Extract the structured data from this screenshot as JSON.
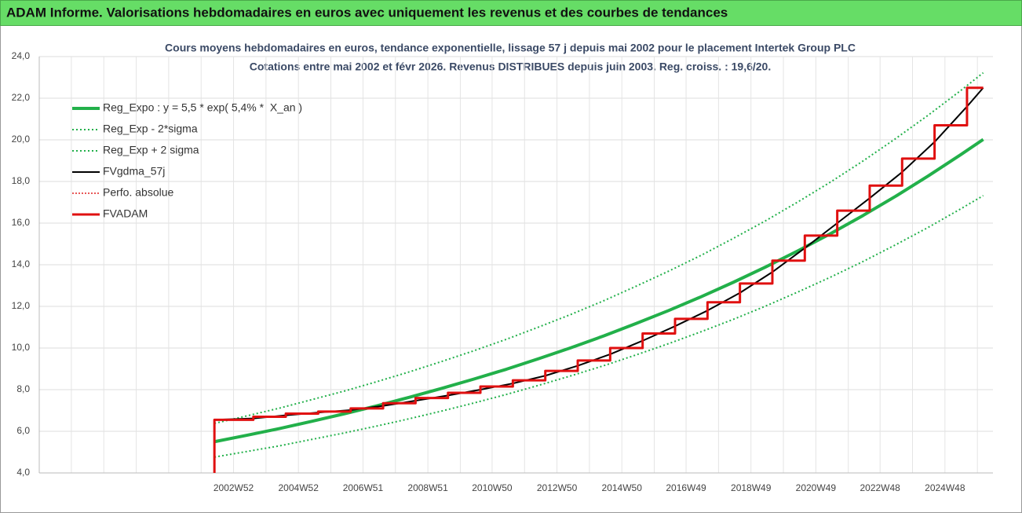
{
  "header": {
    "title": "ADAM Informe. Valorisations hebdomadaires en euros avec uniquement les revenus et des courbes de tendances"
  },
  "chart_data": {
    "type": "line",
    "title": "Cours moyens hebdomadaires en euros, tendance exponentielle, lissage 57 j depuis mai 2002 pour le placement Intertek Group PLC",
    "subtitle": "Cotations entre mai 2002 et févr 2026. Revenus DISTRIBUES depuis juin 2003. Reg. croiss. : 19,6/20.",
    "legend": "top-left",
    "grid": true,
    "xlim": [
      1997.0,
      2026.4
    ],
    "xticks": [
      {
        "value": 2002.99,
        "label": "2002W52"
      },
      {
        "value": 2004.99,
        "label": "2004W52"
      },
      {
        "value": 2006.98,
        "label": "2006W51"
      },
      {
        "value": 2008.98,
        "label": "2008W51"
      },
      {
        "value": 2010.96,
        "label": "2010W50"
      },
      {
        "value": 2012.96,
        "label": "2012W50"
      },
      {
        "value": 2014.96,
        "label": "2014W50"
      },
      {
        "value": 2016.94,
        "label": "2016W49"
      },
      {
        "value": 2018.94,
        "label": "2018W49"
      },
      {
        "value": 2020.94,
        "label": "2020W49"
      },
      {
        "value": 2022.92,
        "label": "2022W48"
      },
      {
        "value": 2024.92,
        "label": "2024W48"
      }
    ],
    "ylim": [
      4,
      24
    ],
    "yticks": [
      {
        "value": 4,
        "label": "4,0"
      },
      {
        "value": 6,
        "label": "6,0"
      },
      {
        "value": 8,
        "label": "8,0"
      },
      {
        "value": 10,
        "label": "10,0"
      },
      {
        "value": 12,
        "label": "12,0"
      },
      {
        "value": 14,
        "label": "14,0"
      },
      {
        "value": 16,
        "label": "16,0"
      },
      {
        "value": 18,
        "label": "18,0"
      },
      {
        "value": 20,
        "label": "20,0"
      },
      {
        "value": 22,
        "label": "22,0"
      },
      {
        "value": 24,
        "label": "24,0"
      }
    ],
    "series": [
      {
        "name": "Reg_Expo : y = 5,5 * exp( 5,4% *  X_an )",
        "color": "#22b04a",
        "width": 4,
        "dash": "none",
        "x": [
          2002.4,
          2003.4,
          2004.4,
          2005.4,
          2006.4,
          2007.4,
          2008.4,
          2009.4,
          2010.4,
          2011.4,
          2012.4,
          2013.4,
          2014.4,
          2015.4,
          2016.4,
          2017.4,
          2018.4,
          2019.4,
          2020.4,
          2021.4,
          2022.4,
          2023.4,
          2024.4,
          2025.4,
          2026.1
        ],
        "values": [
          5.5,
          5.81,
          6.13,
          6.48,
          6.84,
          7.22,
          7.63,
          8.06,
          8.51,
          8.98,
          9.49,
          10.02,
          10.58,
          11.18,
          11.8,
          12.46,
          13.16,
          13.9,
          14.68,
          15.5,
          16.37,
          17.29,
          18.26,
          19.28,
          20.02
        ]
      },
      {
        "name": "Reg_Exp - 2*sigma",
        "color": "#22b04a",
        "width": 2,
        "dash": "2 3",
        "x": [
          2002.4,
          2003.4,
          2004.4,
          2005.4,
          2006.4,
          2007.4,
          2008.4,
          2009.4,
          2010.4,
          2011.4,
          2012.4,
          2013.4,
          2014.4,
          2015.4,
          2016.4,
          2017.4,
          2018.4,
          2019.4,
          2020.4,
          2021.4,
          2022.4,
          2023.4,
          2024.4,
          2025.4,
          2026.1
        ],
        "values": [
          4.76,
          5.03,
          5.3,
          5.61,
          5.92,
          6.25,
          6.6,
          6.97,
          7.36,
          7.77,
          8.21,
          8.67,
          9.15,
          9.67,
          10.21,
          10.78,
          11.38,
          12.02,
          12.7,
          13.41,
          14.16,
          14.96,
          15.79,
          16.68,
          17.32
        ]
      },
      {
        "name": "Reg_Exp + 2 sigma",
        "color": "#22b04a",
        "width": 2,
        "dash": "2 3",
        "x": [
          2002.4,
          2003.4,
          2004.4,
          2005.4,
          2006.4,
          2007.4,
          2008.4,
          2009.4,
          2010.4,
          2011.4,
          2012.4,
          2013.4,
          2014.4,
          2015.4,
          2016.4,
          2017.4,
          2018.4,
          2019.4,
          2020.4,
          2021.4,
          2022.4,
          2023.4,
          2024.4,
          2025.4,
          2026.1
        ],
        "values": [
          6.38,
          6.74,
          7.11,
          7.52,
          7.93,
          8.38,
          8.85,
          9.35,
          9.87,
          10.42,
          11.01,
          11.62,
          12.27,
          12.97,
          13.69,
          14.45,
          15.27,
          16.12,
          17.03,
          17.98,
          18.99,
          20.06,
          21.18,
          22.36,
          23.22
        ]
      },
      {
        "name": "FVgdma_57j",
        "color": "#000000",
        "width": 2,
        "dash": "none",
        "x": [
          2002.4,
          2003.6,
          2004.6,
          2005.6,
          2006.6,
          2007.6,
          2008.6,
          2009.6,
          2010.6,
          2011.6,
          2012.6,
          2013.6,
          2014.6,
          2015.6,
          2016.6,
          2017.6,
          2018.6,
          2019.6,
          2020.6,
          2021.6,
          2022.6,
          2023.6,
          2024.6,
          2025.6,
          2026.1
        ],
        "values": [
          6.55,
          6.62,
          6.77,
          6.9,
          7.02,
          7.22,
          7.47,
          7.72,
          8.0,
          8.3,
          8.67,
          9.15,
          9.7,
          10.35,
          11.05,
          11.8,
          12.65,
          13.65,
          14.8,
          16.0,
          17.2,
          18.45,
          19.9,
          21.6,
          22.5
        ]
      },
      {
        "name": "Perfo. absolue",
        "color": "#e02020",
        "width": 1.5,
        "dash": "2 2",
        "x": [
          2002.4,
          2002.4,
          2003.6,
          2003.6,
          2004.6,
          2004.6,
          2005.6,
          2005.6,
          2006.6,
          2006.6,
          2007.6,
          2007.6,
          2008.6,
          2008.6,
          2009.6,
          2009.6,
          2010.6,
          2010.6,
          2011.6,
          2011.6,
          2012.6,
          2012.6,
          2013.6,
          2013.6,
          2014.6,
          2014.6,
          2015.6,
          2015.6,
          2016.6,
          2016.6,
          2017.6,
          2017.6,
          2018.6,
          2018.6,
          2019.6,
          2019.6,
          2020.6,
          2020.6,
          2021.6,
          2021.6,
          2022.6,
          2022.6,
          2023.6,
          2023.6,
          2024.6,
          2024.6,
          2025.6,
          2025.6,
          2026.1
        ],
        "values": [
          4.0,
          6.55,
          6.55,
          6.7,
          6.7,
          6.85,
          6.85,
          6.95,
          6.95,
          7.1,
          7.1,
          7.35,
          7.35,
          7.6,
          7.6,
          7.85,
          7.85,
          8.15,
          8.15,
          8.45,
          8.45,
          8.9,
          8.9,
          9.4,
          9.4,
          10.0,
          10.0,
          10.7,
          10.7,
          11.4,
          11.4,
          12.2,
          12.2,
          13.1,
          13.1,
          14.2,
          14.2,
          15.4,
          15.4,
          16.6,
          16.6,
          17.8,
          17.8,
          19.1,
          19.1,
          20.7,
          20.7,
          22.5,
          22.5
        ]
      },
      {
        "name": "FVADAM",
        "color": "#e01010",
        "width": 3,
        "dash": "none",
        "x": [
          2002.4,
          2002.4,
          2003.6,
          2003.6,
          2004.6,
          2004.6,
          2005.6,
          2005.6,
          2006.6,
          2006.6,
          2007.6,
          2007.6,
          2008.6,
          2008.6,
          2009.6,
          2009.6,
          2010.6,
          2010.6,
          2011.6,
          2011.6,
          2012.6,
          2012.6,
          2013.6,
          2013.6,
          2014.6,
          2014.6,
          2015.6,
          2015.6,
          2016.6,
          2016.6,
          2017.6,
          2017.6,
          2018.6,
          2018.6,
          2019.6,
          2019.6,
          2020.6,
          2020.6,
          2021.6,
          2021.6,
          2022.6,
          2022.6,
          2023.6,
          2023.6,
          2024.6,
          2024.6,
          2025.6,
          2025.6,
          2026.1
        ],
        "values": [
          4.0,
          6.55,
          6.55,
          6.7,
          6.7,
          6.85,
          6.85,
          6.95,
          6.95,
          7.1,
          7.1,
          7.35,
          7.35,
          7.6,
          7.6,
          7.85,
          7.85,
          8.15,
          8.15,
          8.45,
          8.45,
          8.9,
          8.9,
          9.4,
          9.4,
          10.0,
          10.0,
          10.7,
          10.7,
          11.4,
          11.4,
          12.2,
          12.2,
          13.1,
          13.1,
          14.2,
          14.2,
          15.4,
          15.4,
          16.6,
          16.6,
          17.8,
          17.8,
          19.1,
          19.1,
          20.7,
          20.7,
          22.5,
          22.5
        ]
      }
    ]
  }
}
